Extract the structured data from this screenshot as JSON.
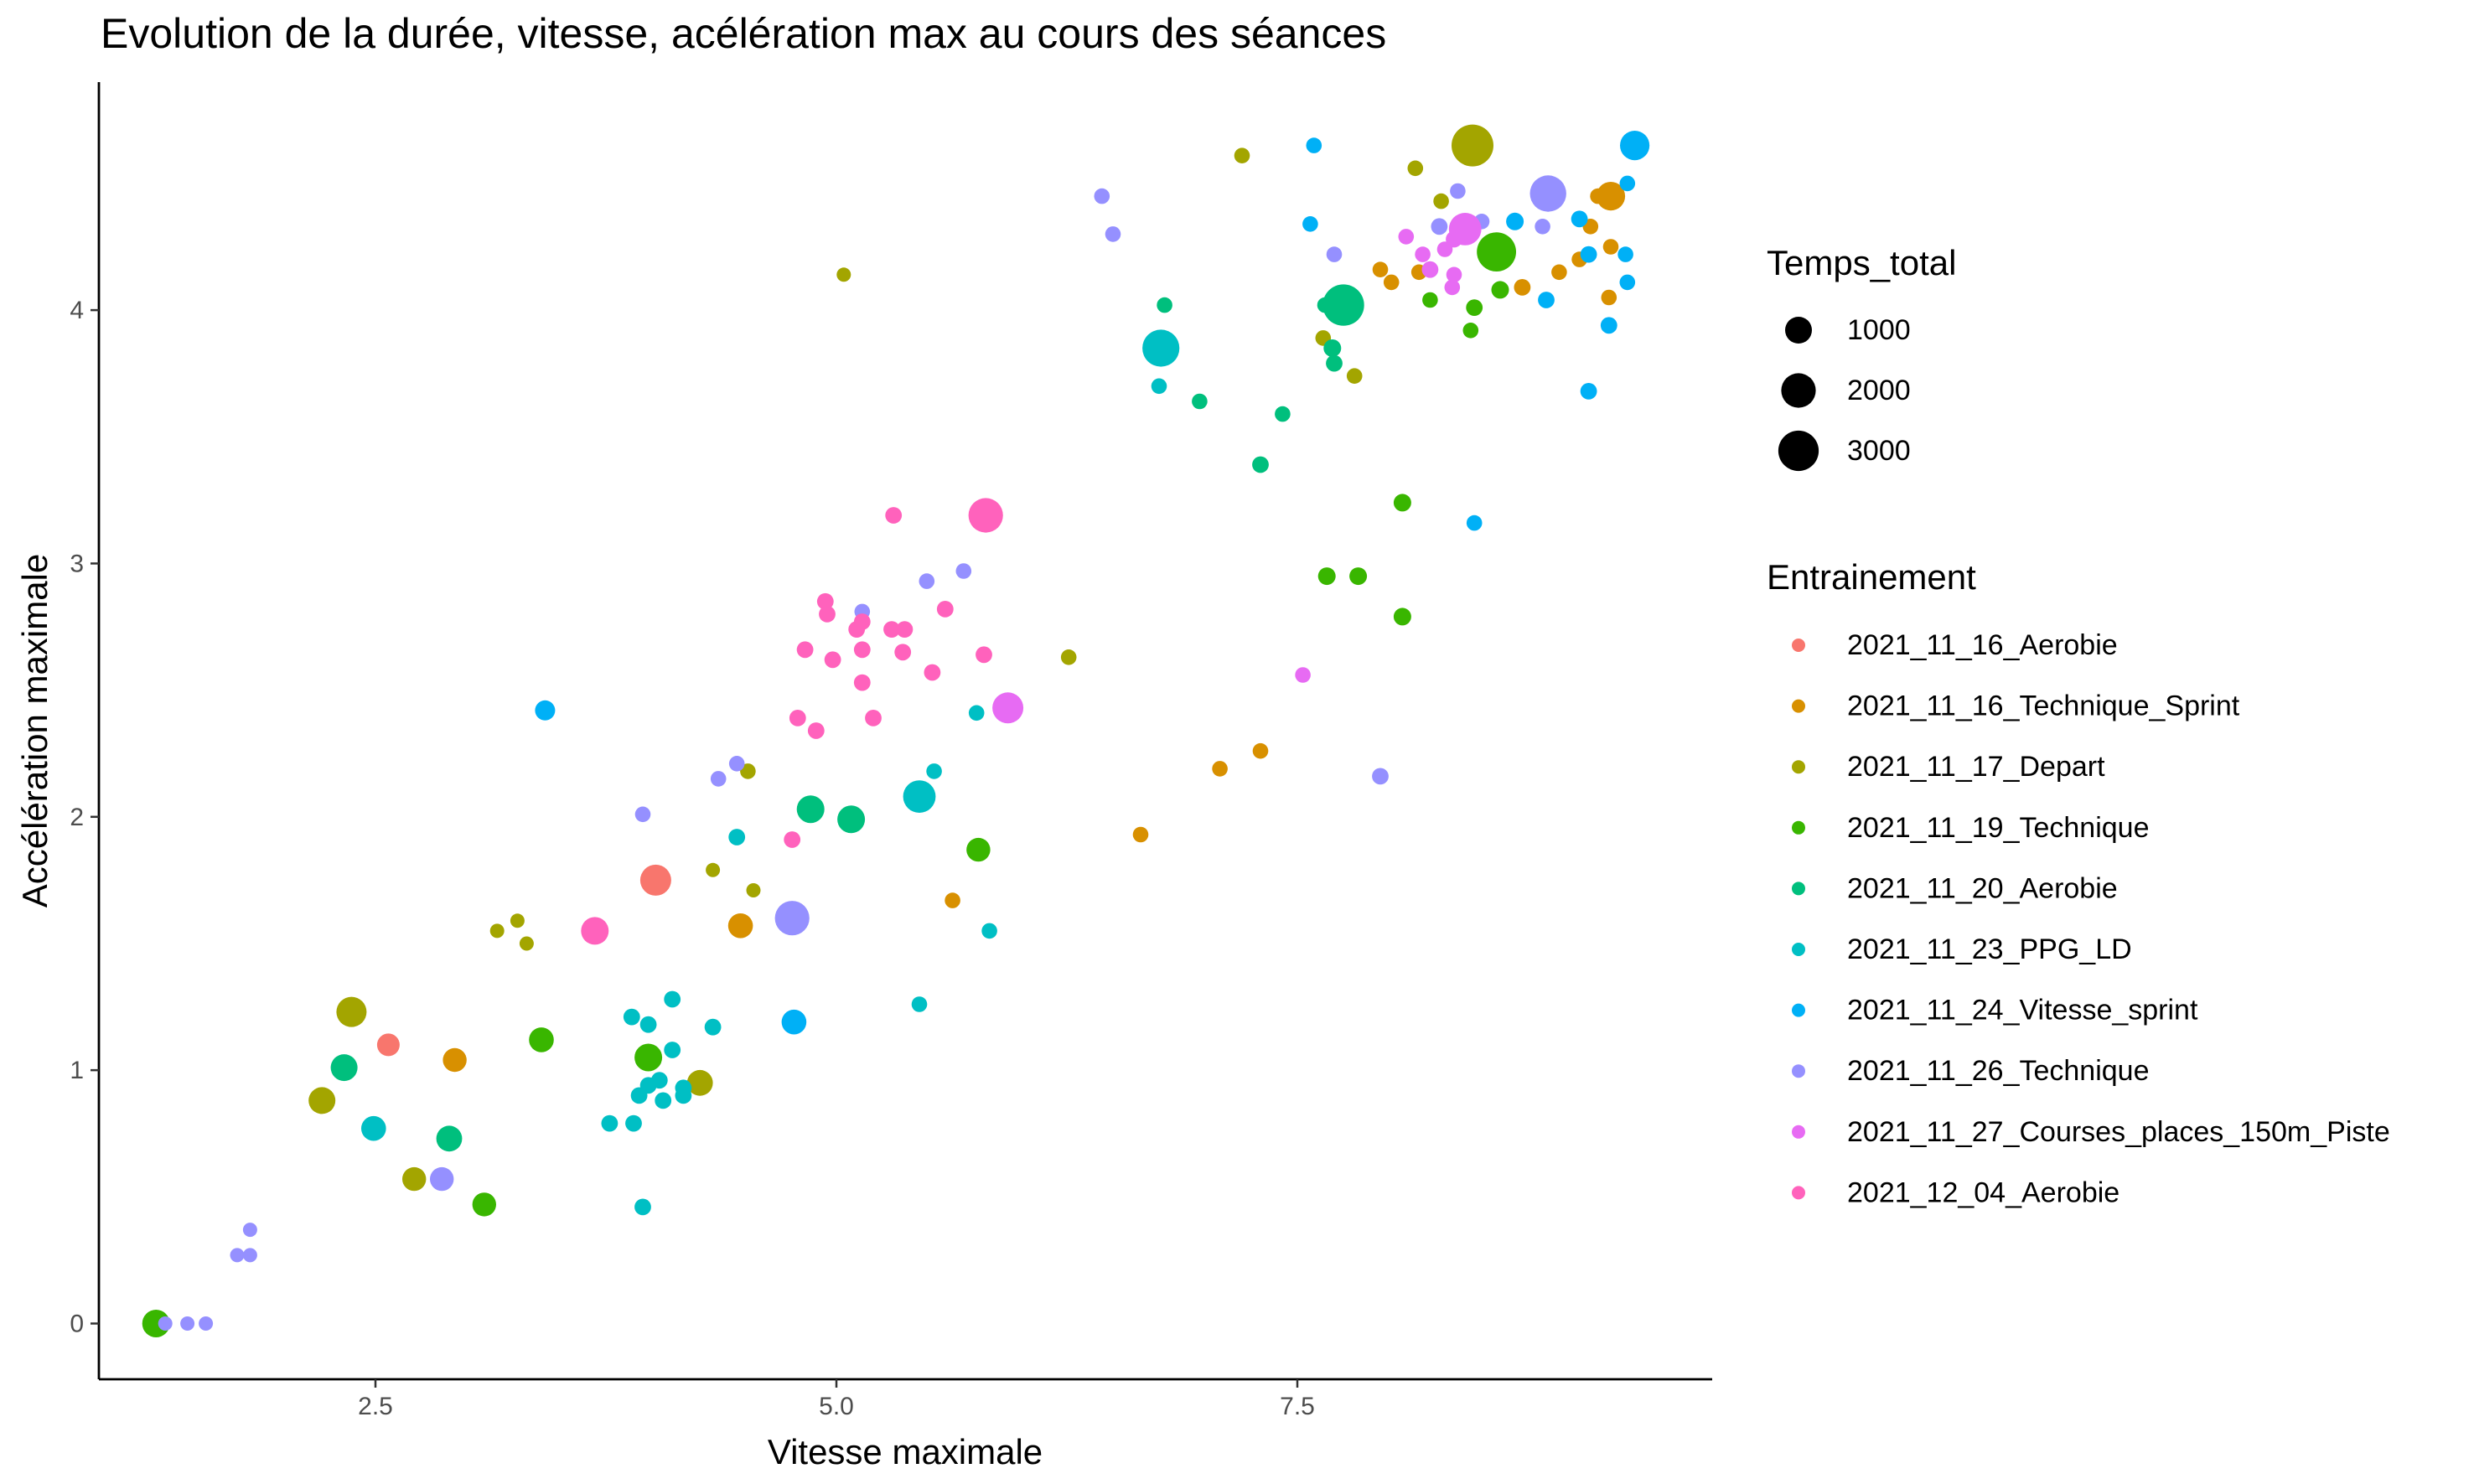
{
  "chart_data": {
    "type": "scatter",
    "title": "Evolution de la durée, vitesse, acélération max au cours des séances",
    "xlabel": "Vitesse maximale",
    "ylabel": "Accélération maximale",
    "xlim": [
      1.0,
      9.75
    ],
    "ylim": [
      -0.22,
      4.9
    ],
    "x_ticks": [
      2.5,
      5.0,
      7.5
    ],
    "x_tick_labels": [
      "2.5",
      "5.0",
      "7.5"
    ],
    "y_ticks": [
      0,
      1,
      2,
      3,
      4
    ],
    "y_tick_labels": [
      "0",
      "1",
      "2",
      "3",
      "4"
    ],
    "grid": false,
    "legend_position": "right",
    "size_legend": {
      "title": "Temps_total",
      "values": [
        1000,
        2000,
        3000
      ],
      "labels": [
        "1000",
        "2000",
        "3000"
      ]
    },
    "color_legend": {
      "title": "Entrainement"
    },
    "series": [
      {
        "name": "2021_11_16_Aerobie",
        "color": "#F8766D",
        "points": [
          [
            2.57,
            1.1,
            600
          ],
          [
            4.02,
            1.75,
            1500
          ]
        ]
      },
      {
        "name": "2021_11_16_Technique_Sprint",
        "color": "#D89000",
        "points": [
          [
            2.93,
            1.04,
            700
          ],
          [
            4.48,
            1.57,
            800
          ],
          [
            5.63,
            1.67,
            150
          ],
          [
            6.65,
            1.93,
            150
          ],
          [
            7.08,
            2.19,
            150
          ],
          [
            7.3,
            2.26,
            150
          ],
          [
            8.01,
            4.11,
            150
          ],
          [
            8.16,
            4.15,
            150
          ],
          [
            8.72,
            4.09,
            200
          ],
          [
            8.92,
            4.15,
            150
          ],
          [
            9.03,
            4.2,
            150
          ],
          [
            9.09,
            4.33,
            150
          ],
          [
            9.13,
            4.45,
            150
          ],
          [
            9.2,
            4.45,
            1200
          ],
          [
            9.19,
            4.05,
            150
          ],
          [
            9.2,
            4.25,
            150
          ],
          [
            7.95,
            4.16,
            150
          ]
        ]
      },
      {
        "name": "2021_11_17_Depart",
        "color": "#A3A500",
        "points": [
          [
            2.21,
            0.88,
            1000
          ],
          [
            2.37,
            1.23,
            1400
          ],
          [
            2.71,
            0.57,
            700
          ],
          [
            3.16,
            1.55,
            100
          ],
          [
            3.27,
            1.59,
            100
          ],
          [
            3.32,
            1.5,
            100
          ],
          [
            4.26,
            0.95,
            900
          ],
          [
            4.33,
            1.79,
            100
          ],
          [
            4.55,
            1.71,
            100
          ],
          [
            4.52,
            2.18,
            150
          ],
          [
            5.04,
            4.14,
            100
          ],
          [
            6.26,
            2.63,
            150
          ],
          [
            7.2,
            4.61,
            150
          ],
          [
            7.64,
            3.89,
            150
          ],
          [
            7.81,
            3.74,
            150
          ],
          [
            8.14,
            4.56,
            150
          ],
          [
            8.28,
            4.43,
            150
          ],
          [
            8.45,
            4.65,
            3300
          ]
        ]
      },
      {
        "name": "2021_11_19_Technique",
        "color": "#39B600",
        "points": [
          [
            1.31,
            0.0,
            1100
          ],
          [
            3.09,
            0.47,
            700
          ],
          [
            3.4,
            1.12,
            800
          ],
          [
            3.98,
            1.05,
            1100
          ],
          [
            5.77,
            1.87,
            700
          ],
          [
            7.66,
            2.95,
            250
          ],
          [
            7.83,
            2.95,
            250
          ],
          [
            8.07,
            3.24,
            250
          ],
          [
            8.07,
            2.79,
            250
          ],
          [
            8.22,
            4.04,
            150
          ],
          [
            8.46,
            4.01,
            200
          ],
          [
            8.44,
            3.92,
            150
          ],
          [
            8.58,
            4.23,
            2800
          ],
          [
            8.6,
            4.08,
            250
          ]
        ]
      },
      {
        "name": "2021_11_20_Aerobie",
        "color": "#00BF7D",
        "points": [
          [
            2.33,
            1.01,
            1000
          ],
          [
            2.9,
            0.73,
            900
          ],
          [
            4.86,
            2.03,
            1100
          ],
          [
            5.08,
            1.99,
            1100
          ],
          [
            6.78,
            4.02,
            150
          ],
          [
            6.97,
            3.64,
            150
          ],
          [
            7.3,
            3.39,
            200
          ],
          [
            7.42,
            3.59,
            150
          ],
          [
            7.65,
            4.02,
            150
          ],
          [
            7.75,
            4.02,
            3200
          ],
          [
            7.69,
            3.85,
            250
          ],
          [
            7.7,
            3.79,
            200
          ]
        ]
      },
      {
        "name": "2021_11_23_PPG_LD",
        "color": "#00BFC4",
        "points": [
          [
            2.49,
            0.77,
            800
          ],
          [
            3.77,
            0.79,
            200
          ],
          [
            3.89,
            1.21,
            200
          ],
          [
            3.9,
            0.79,
            200
          ],
          [
            3.93,
            0.9,
            200
          ],
          [
            3.95,
            0.46,
            200
          ],
          [
            3.98,
            1.18,
            200
          ],
          [
            3.98,
            0.94,
            200
          ],
          [
            4.04,
            0.96,
            200
          ],
          [
            4.06,
            0.88,
            200
          ],
          [
            4.11,
            1.28,
            200
          ],
          [
            4.11,
            1.08,
            200
          ],
          [
            4.17,
            0.9,
            200
          ],
          [
            4.17,
            0.93,
            200
          ],
          [
            4.33,
            1.17,
            200
          ],
          [
            4.46,
            1.92,
            200
          ],
          [
            5.45,
            1.26,
            150
          ],
          [
            5.53,
            2.18,
            150
          ],
          [
            5.45,
            2.08,
            1700
          ],
          [
            5.83,
            1.55,
            150
          ],
          [
            5.76,
            2.41,
            150
          ],
          [
            6.75,
            3.7,
            150
          ],
          [
            6.76,
            3.85,
            2400
          ]
        ]
      },
      {
        "name": "2021_11_24_Vitesse_sprint",
        "color": "#00B0F6",
        "points": [
          [
            3.42,
            2.42,
            400
          ],
          [
            4.77,
            1.19,
            800
          ],
          [
            7.57,
            4.34,
            150
          ],
          [
            7.59,
            4.65,
            150
          ],
          [
            8.46,
            3.16,
            150
          ],
          [
            8.68,
            4.35,
            250
          ],
          [
            8.85,
            4.04,
            200
          ],
          [
            9.03,
            4.36,
            200
          ],
          [
            9.08,
            4.22,
            200
          ],
          [
            9.08,
            3.68,
            200
          ],
          [
            9.19,
            3.94,
            200
          ],
          [
            9.28,
            4.22,
            150
          ],
          [
            9.29,
            4.5,
            150
          ],
          [
            9.29,
            4.11,
            150
          ],
          [
            9.33,
            4.65,
            1300
          ]
        ]
      },
      {
        "name": "2021_11_26_Technique",
        "color": "#9590FF",
        "points": [
          [
            1.36,
            0.0,
            100
          ],
          [
            1.48,
            0.0,
            100
          ],
          [
            1.58,
            0.0,
            100
          ],
          [
            1.75,
            0.27,
            100
          ],
          [
            1.82,
            0.27,
            100
          ],
          [
            1.82,
            0.37,
            100
          ],
          [
            2.86,
            0.57,
            700
          ],
          [
            3.95,
            2.01,
            150
          ],
          [
            4.36,
            2.15,
            150
          ],
          [
            4.46,
            2.21,
            150
          ],
          [
            4.76,
            1.6,
            2000
          ],
          [
            5.14,
            2.81,
            150
          ],
          [
            5.49,
            2.93,
            150
          ],
          [
            5.69,
            2.97,
            150
          ],
          [
            6.44,
            4.45,
            150
          ],
          [
            6.5,
            4.3,
            150
          ],
          [
            7.95,
            2.16,
            200
          ],
          [
            7.7,
            4.22,
            150
          ],
          [
            8.27,
            4.33,
            200
          ],
          [
            8.37,
            4.47,
            150
          ],
          [
            8.5,
            4.35,
            150
          ],
          [
            8.83,
            4.33,
            150
          ],
          [
            8.86,
            4.46,
            2300
          ]
        ]
      },
      {
        "name": "2021_11_27_Courses_places_150m_Piste",
        "color": "#E76BF3",
        "points": [
          [
            5.93,
            2.43,
            1500
          ],
          [
            7.53,
            2.56,
            150
          ],
          [
            8.09,
            4.29,
            150
          ],
          [
            8.18,
            4.22,
            150
          ],
          [
            8.22,
            4.16,
            200
          ],
          [
            8.3,
            4.24,
            150
          ],
          [
            8.34,
            4.09,
            150
          ],
          [
            8.35,
            4.28,
            200
          ],
          [
            8.41,
            4.32,
            1700
          ],
          [
            8.35,
            4.14,
            150
          ]
        ]
      },
      {
        "name": "2021_12_04_Aerobie",
        "color": "#FF62BC",
        "points": [
          [
            3.69,
            1.55,
            1100
          ],
          [
            4.76,
            1.91,
            200
          ],
          [
            4.79,
            2.39,
            200
          ],
          [
            4.83,
            2.66,
            200
          ],
          [
            4.89,
            2.34,
            200
          ],
          [
            4.94,
            2.85,
            200
          ],
          [
            4.95,
            2.8,
            200
          ],
          [
            4.98,
            2.62,
            200
          ],
          [
            5.11,
            2.74,
            200
          ],
          [
            5.14,
            2.77,
            200
          ],
          [
            5.14,
            2.66,
            200
          ],
          [
            5.14,
            2.53,
            200
          ],
          [
            5.2,
            2.39,
            200
          ],
          [
            5.3,
            2.74,
            200
          ],
          [
            5.31,
            3.19,
            200
          ],
          [
            5.36,
            2.65,
            200
          ],
          [
            5.37,
            2.74,
            200
          ],
          [
            5.52,
            2.57,
            200
          ],
          [
            5.59,
            2.82,
            200
          ],
          [
            5.8,
            2.64,
            200
          ],
          [
            5.81,
            3.19,
            2000
          ]
        ]
      }
    ]
  }
}
